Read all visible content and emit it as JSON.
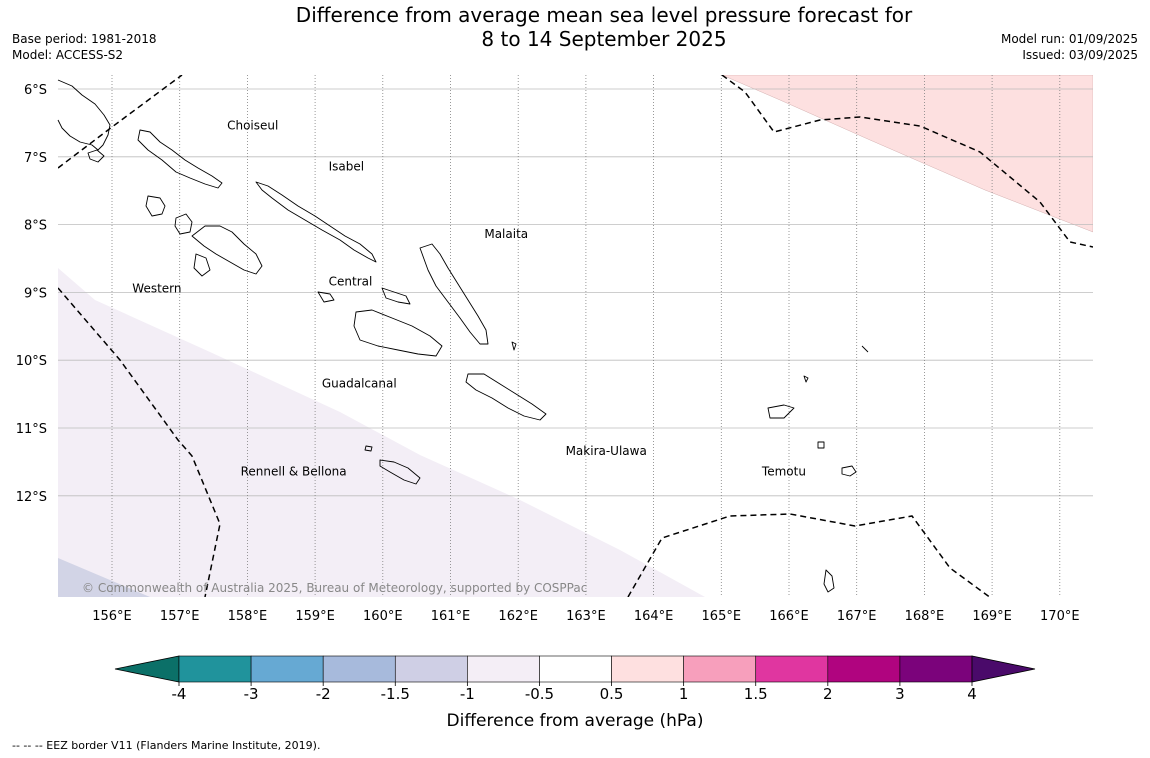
{
  "header": {
    "title_line1": "Difference from average mean sea level pressure forecast for",
    "title_line2": "8 to 14 September 2025",
    "base_period": "Base period: 1981-2018",
    "model": "Model: ACCESS-S2",
    "model_run": "Model run: 01/09/2025",
    "issued": "Issued: 03/09/2025"
  },
  "map": {
    "lon_labels": [
      "156°E",
      "157°E",
      "158°E",
      "159°E",
      "160°E",
      "161°E",
      "162°E",
      "163°E",
      "164°E",
      "165°E",
      "166°E",
      "167°E",
      "168°E",
      "169°E",
      "170°E"
    ],
    "lat_labels": [
      "6°S",
      "7°S",
      "8°S",
      "9°S",
      "10°S",
      "11°S",
      "12°S"
    ],
    "regions": [
      {
        "name": "Choiseul",
        "lon": 157.7,
        "lat": -6.6
      },
      {
        "name": "Isabel",
        "lon": 159.2,
        "lat": -7.2
      },
      {
        "name": "Malaita",
        "lon": 161.5,
        "lat": -8.2
      },
      {
        "name": "Western",
        "lon": 156.3,
        "lat": -9.0
      },
      {
        "name": "Central",
        "lon": 159.2,
        "lat": -8.9
      },
      {
        "name": "Guadalcanal",
        "lon": 159.1,
        "lat": -10.4
      },
      {
        "name": "Makira-Ulawa",
        "lon": 162.7,
        "lat": -11.4
      },
      {
        "name": "Temotu",
        "lon": 165.6,
        "lat": -11.7
      },
      {
        "name": "Rennell & Bellona",
        "lon": 157.9,
        "lat": -11.7
      }
    ],
    "copyright": "© Commonwealth of Australia 2025, Bureau of Meteorology, supported by COSPPac",
    "anomaly_colors": {
      "minus_1_to_minus_0_5": "#f3eef6",
      "minus_1_5_to_minus_1": "#d2d4e6",
      "plus_0_5_to_1": "#fde0e0"
    }
  },
  "colorbar": {
    "label": "Difference from average (hPa)",
    "ticks": [
      "-4",
      "-3",
      "-2",
      "-1.5",
      "-1",
      "-0.5",
      "0.5",
      "1",
      "1.5",
      "2",
      "3",
      "4"
    ],
    "low_extend_color": "#0b7068",
    "high_extend_color": "#4a0a6a",
    "colors": [
      "#20939c",
      "#66a9d3",
      "#a7badc",
      "#cfcfe5",
      "#f4eef6",
      "#ffffff",
      "#fee0e0",
      "#f79fbc",
      "#e036a0",
      "#b0047f",
      "#7b037b"
    ]
  },
  "footnote": "--  --  -- EEZ border V11 (Flanders Marine Institute, 2019)."
}
